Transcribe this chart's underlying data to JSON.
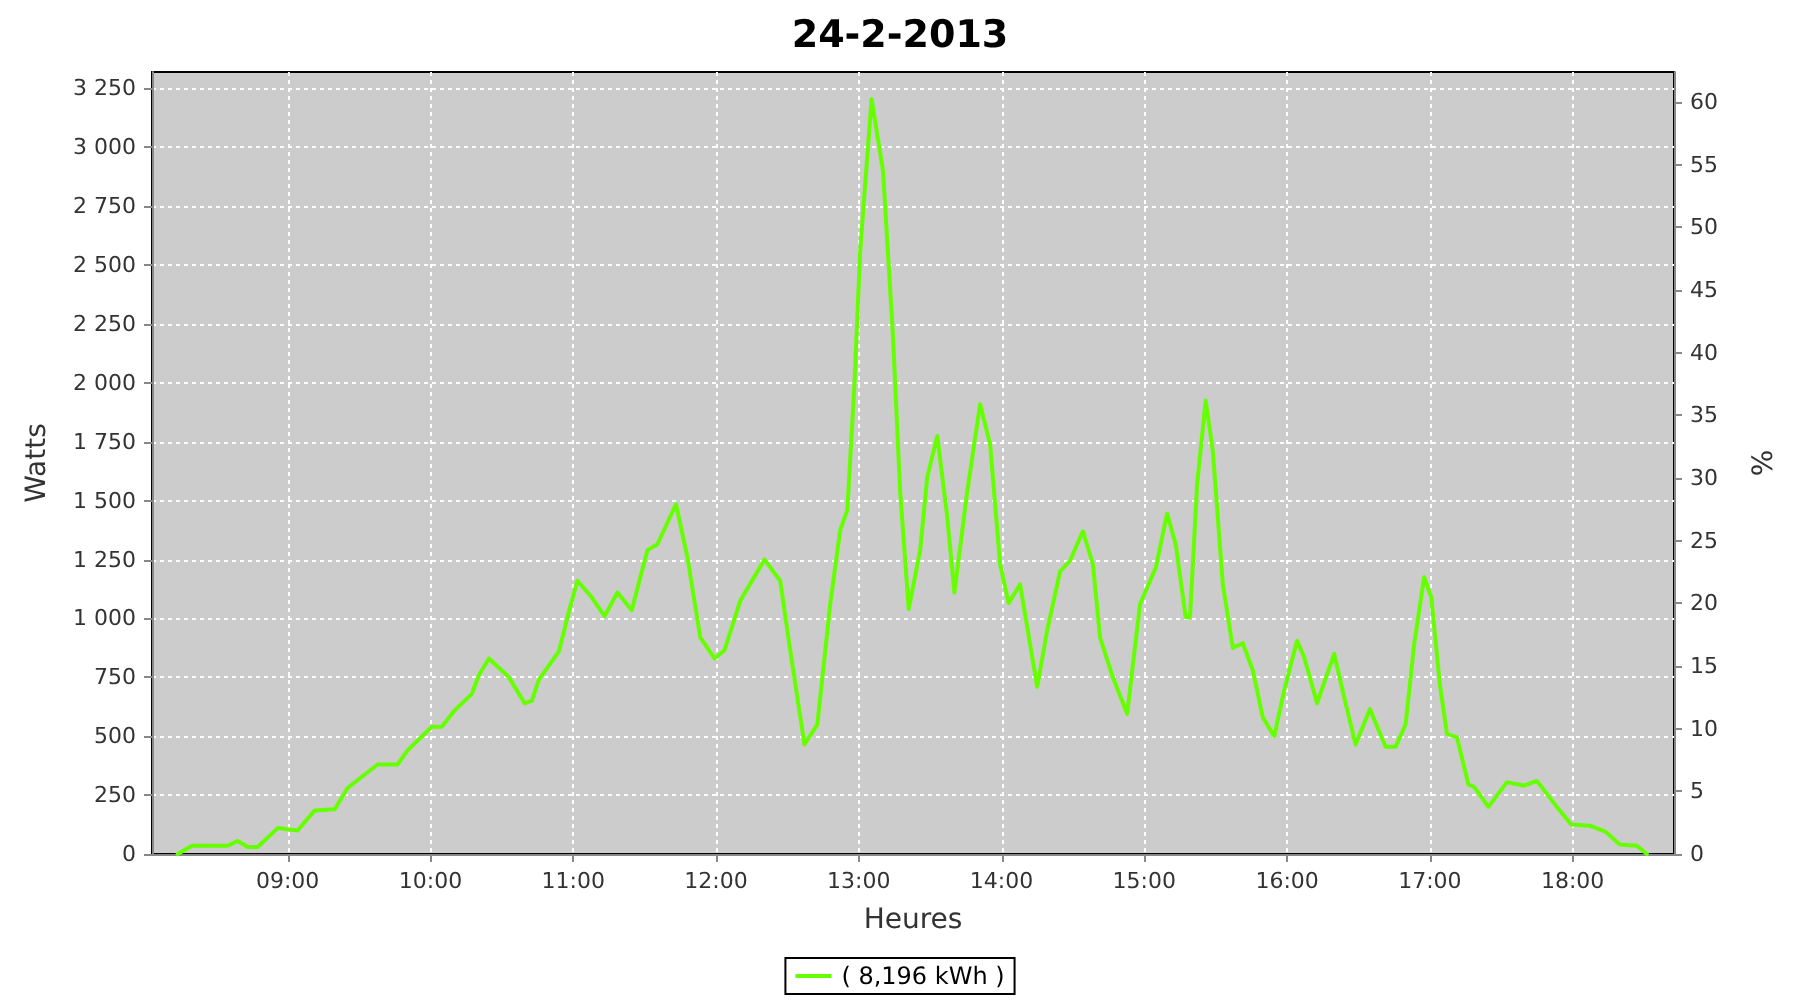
{
  "chart_data": {
    "type": "line",
    "title": "24-2-2013",
    "xlabel": "Heures",
    "ylabel": "Watts",
    "y2label": "%",
    "xlim": [
      8.05,
      18.71
    ],
    "xticks": [
      {
        "value": 9,
        "label": "09:00"
      },
      {
        "value": 10,
        "label": "10:00"
      },
      {
        "value": 11,
        "label": "11:00"
      },
      {
        "value": 12,
        "label": "12:00"
      },
      {
        "value": 13,
        "label": "13:00"
      },
      {
        "value": 14,
        "label": "14:00"
      },
      {
        "value": 15,
        "label": "15:00"
      },
      {
        "value": 16,
        "label": "16:00"
      },
      {
        "value": 17,
        "label": "17:00"
      },
      {
        "value": 18,
        "label": "18:00"
      }
    ],
    "ylim": [
      0,
      3320
    ],
    "yticks": [
      0,
      250,
      500,
      750,
      {
        "value": 1000,
        "label": "1 000"
      },
      {
        "value": 1250,
        "label": "1 250"
      },
      {
        "value": 1500,
        "label": "1 500"
      },
      {
        "value": 1750,
        "label": "1 750"
      },
      {
        "value": 2000,
        "label": "2 000"
      },
      {
        "value": 2250,
        "label": "2 250"
      },
      {
        "value": 2500,
        "label": "2 500"
      },
      {
        "value": 2750,
        "label": "2 750"
      },
      {
        "value": 3000,
        "label": "3 000"
      },
      {
        "value": 3250,
        "label": "3 250"
      }
    ],
    "y2lim": [
      0,
      62.4
    ],
    "y2ticks": [
      0,
      5,
      10,
      15,
      20,
      25,
      30,
      35,
      40,
      45,
      50,
      55,
      60
    ],
    "grid": true,
    "legend": "bottom",
    "marker": "none",
    "line_style": "solid",
    "series": [
      {
        "name": "( 8,196 kWh )",
        "color": "#66ff00",
        "x": [
          8.23,
          8.33,
          8.58,
          8.65,
          8.72,
          8.79,
          8.93,
          9.0,
          9.07,
          9.19,
          9.33,
          9.42,
          9.63,
          9.77,
          9.84,
          10.01,
          10.08,
          10.17,
          10.29,
          10.34,
          10.41,
          10.55,
          10.66,
          10.71,
          10.76,
          10.9,
          10.97,
          11.03,
          11.13,
          11.22,
          11.31,
          11.41,
          11.52,
          11.59,
          11.72,
          11.8,
          11.89,
          11.99,
          12.06,
          12.17,
          12.34,
          12.45,
          12.52,
          12.62,
          12.71,
          12.8,
          12.87,
          12.92,
          12.97,
          13.01,
          13.09,
          13.17,
          13.24,
          13.29,
          13.35,
          13.43,
          13.48,
          13.55,
          13.62,
          13.67,
          13.76,
          13.85,
          13.92,
          13.99,
          14.05,
          14.13,
          14.25,
          14.32,
          14.41,
          14.48,
          14.57,
          14.64,
          14.69,
          14.78,
          14.88,
          14.97,
          15.08,
          15.16,
          15.22,
          15.29,
          15.32,
          15.37,
          15.43,
          15.48,
          15.55,
          15.62,
          15.69,
          15.76,
          15.83,
          15.91,
          15.98,
          16.07,
          16.12,
          16.21,
          16.33,
          16.4,
          16.48,
          16.58,
          16.69,
          16.76,
          16.83,
          16.89,
          16.96,
          17.01,
          17.07,
          17.12,
          17.19,
          17.27,
          17.31,
          17.41,
          17.54,
          17.66,
          17.75,
          17.89,
          17.99,
          18.12,
          18.23,
          18.33,
          18.45,
          18.52
        ],
        "values": [
          0,
          35,
          35,
          55,
          30,
          30,
          110,
          105,
          100,
          185,
          190,
          280,
          380,
          380,
          440,
          540,
          540,
          610,
          680,
          760,
          830,
          750,
          640,
          650,
          740,
          860,
          1030,
          1160,
          1090,
          1010,
          1110,
          1035,
          1290,
          1315,
          1485,
          1260,
          920,
          830,
          865,
          1075,
          1250,
          1160,
          865,
          465,
          550,
          1060,
          1375,
          1460,
          1995,
          2560,
          3205,
          2900,
          2195,
          1540,
          1040,
          1290,
          1600,
          1775,
          1430,
          1110,
          1540,
          1910,
          1740,
          1230,
          1065,
          1145,
          710,
          950,
          1200,
          1245,
          1370,
          1230,
          920,
          750,
          595,
          1060,
          1215,
          1445,
          1315,
          1005,
          1005,
          1570,
          1925,
          1710,
          1145,
          875,
          895,
          780,
          580,
          500,
          695,
          905,
          835,
          640,
          850,
          665,
          465,
          615,
          455,
          455,
          550,
          890,
          1175,
          1090,
          720,
          510,
          495,
          295,
          285,
          200,
          305,
          290,
          310,
          200,
          125,
          120,
          95,
          40,
          35,
          0
        ]
      }
    ]
  }
}
